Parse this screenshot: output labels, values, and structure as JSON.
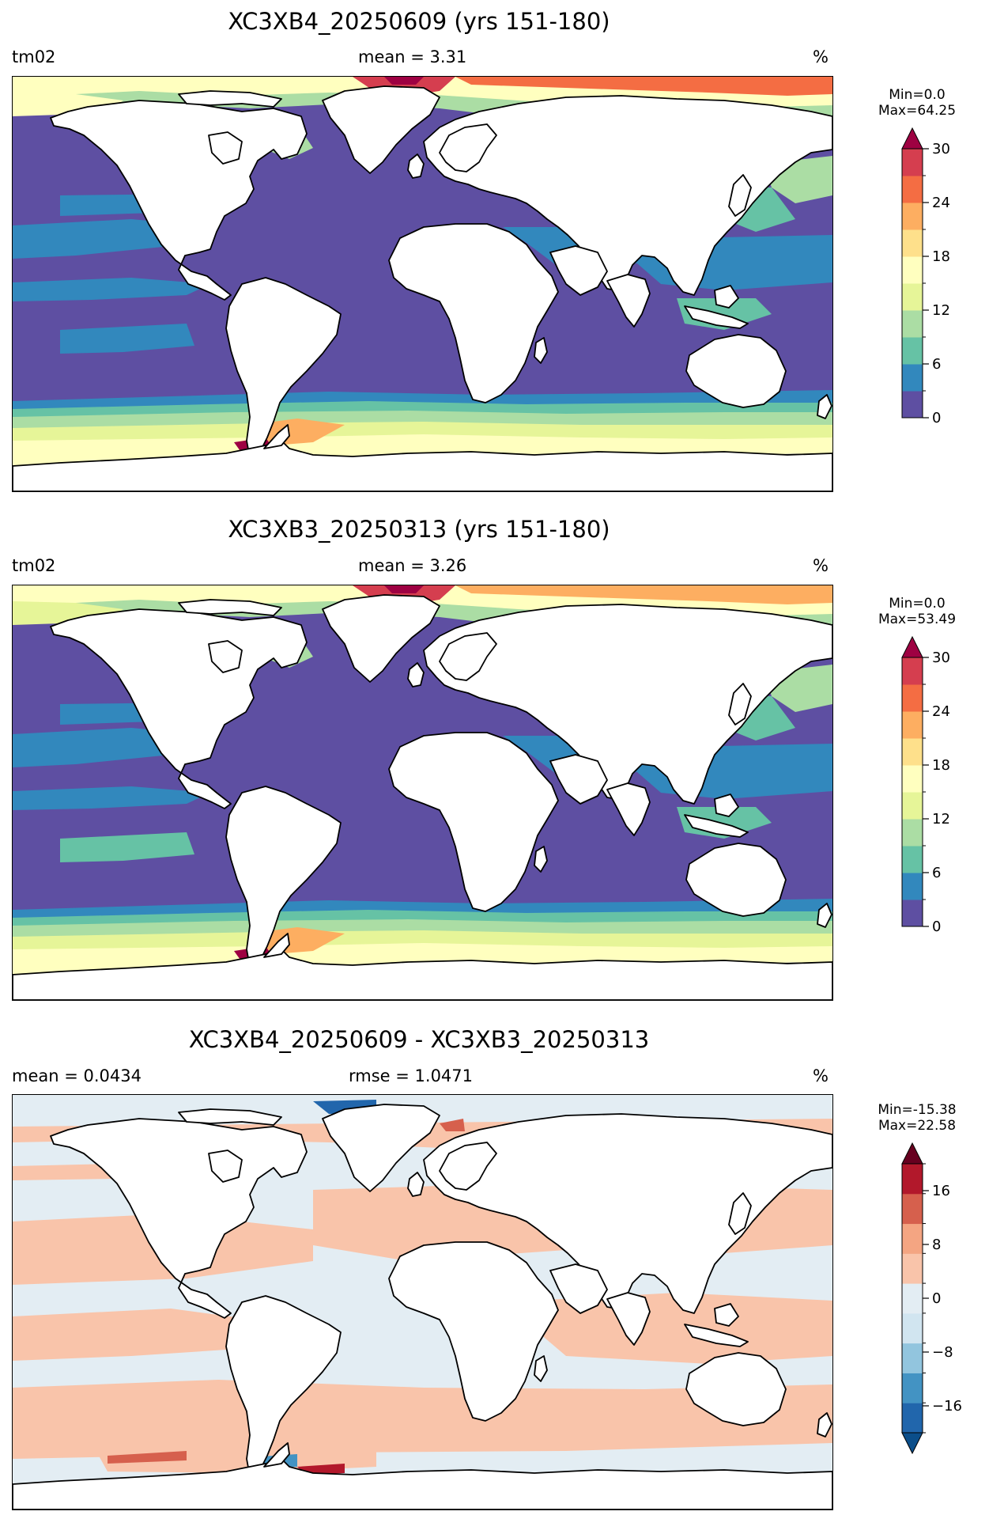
{
  "colors": {
    "spectral": [
      "#5e4fa2",
      "#3288bd",
      "#66c2a5",
      "#abdda4",
      "#e6f598",
      "#ffffbf",
      "#fee08b",
      "#fdae61",
      "#f46d43",
      "#d53e4f",
      "#9e0142"
    ],
    "diverging": [
      "#0b4e8a",
      "#2166ac",
      "#4393c3",
      "#92c5de",
      "#d1e5f0",
      "#e3edf3",
      "#f9c4aa",
      "#f4a582",
      "#d6604d",
      "#b2182b",
      "#67001f"
    ],
    "land": "#ffffff",
    "coast": "#000000"
  },
  "panels": [
    {
      "title": "XC3XB4_20250609 (yrs 151-180)",
      "left_label": "tm02",
      "center_label": "mean = 3.31",
      "right_label": "%",
      "colorbar": {
        "min_label": "Min=0.0",
        "max_label": "Max=64.25",
        "ticks": [
          "0",
          "6",
          "12",
          "18",
          "24",
          "30"
        ],
        "extend": "max",
        "palette": "spectral"
      },
      "field": "positive_a"
    },
    {
      "title": "XC3XB3_20250313 (yrs 151-180)",
      "left_label": "tm02",
      "center_label": "mean = 3.26",
      "right_label": "%",
      "colorbar": {
        "min_label": "Min=0.0",
        "max_label": "Max=53.49",
        "ticks": [
          "0",
          "6",
          "12",
          "18",
          "24",
          "30"
        ],
        "extend": "max",
        "palette": "spectral"
      },
      "field": "positive_b"
    },
    {
      "title": "XC3XB4_20250609 - XC3XB3_20250313",
      "left_label": "mean = 0.0434",
      "center_label": "rmse = 1.0471",
      "right_label": "%",
      "colorbar": {
        "min_label": "Min=-15.38",
        "max_label": "Max=22.58",
        "ticks": [
          "16",
          "8",
          "0",
          "−8",
          "−16"
        ],
        "extend": "both",
        "palette": "diverging"
      },
      "field": "difference"
    }
  ]
}
